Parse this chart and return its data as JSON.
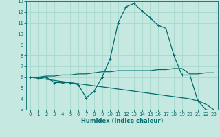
{
  "xlabel": "Humidex (Indice chaleur)",
  "xlim": [
    -0.5,
    23.5
  ],
  "ylim": [
    3,
    13
  ],
  "xticks": [
    0,
    1,
    2,
    3,
    4,
    5,
    6,
    7,
    8,
    9,
    10,
    11,
    12,
    13,
    14,
    15,
    16,
    17,
    18,
    19,
    20,
    21,
    22,
    23
  ],
  "yticks": [
    3,
    4,
    5,
    6,
    7,
    8,
    9,
    10,
    11,
    12,
    13
  ],
  "background_color": "#c5e8e0",
  "grid_color": "#a8d8ce",
  "line_color": "#006b6b",
  "curve1_x": [
    0,
    1,
    2,
    3,
    4,
    5,
    6,
    7,
    8,
    9,
    10,
    11,
    12,
    13,
    14,
    15,
    16,
    17,
    18,
    19,
    20,
    21,
    22,
    23
  ],
  "curve1_y": [
    6.0,
    5.9,
    6.0,
    5.5,
    5.5,
    5.5,
    5.3,
    4.1,
    4.7,
    6.0,
    7.7,
    11.0,
    12.5,
    12.8,
    12.1,
    11.5,
    10.8,
    10.5,
    8.0,
    6.2,
    6.2,
    3.8,
    3.0,
    2.9
  ],
  "curve2_x": [
    0,
    1,
    2,
    3,
    4,
    5,
    6,
    7,
    8,
    9,
    10,
    11,
    12,
    13,
    14,
    15,
    16,
    17,
    18,
    19,
    20,
    21,
    22,
    23
  ],
  "curve2_y": [
    6.0,
    6.0,
    6.1,
    6.1,
    6.2,
    6.2,
    6.3,
    6.3,
    6.4,
    6.5,
    6.5,
    6.6,
    6.6,
    6.6,
    6.6,
    6.6,
    6.7,
    6.7,
    6.8,
    6.8,
    6.3,
    6.3,
    6.4,
    6.4
  ],
  "curve3_x": [
    0,
    1,
    2,
    3,
    4,
    5,
    6,
    7,
    8,
    9,
    10,
    11,
    12,
    13,
    14,
    15,
    16,
    17,
    18,
    19,
    20,
    21,
    22,
    23
  ],
  "curve3_y": [
    6.0,
    5.9,
    5.8,
    5.7,
    5.6,
    5.5,
    5.4,
    5.3,
    5.2,
    5.1,
    5.0,
    4.9,
    4.8,
    4.7,
    4.6,
    4.5,
    4.4,
    4.3,
    4.2,
    4.1,
    4.0,
    3.8,
    3.5,
    3.0
  ],
  "tick_fontsize": 5.0,
  "xlabel_fontsize": 6.0,
  "marker_size": 2.5,
  "line_width": 0.9
}
